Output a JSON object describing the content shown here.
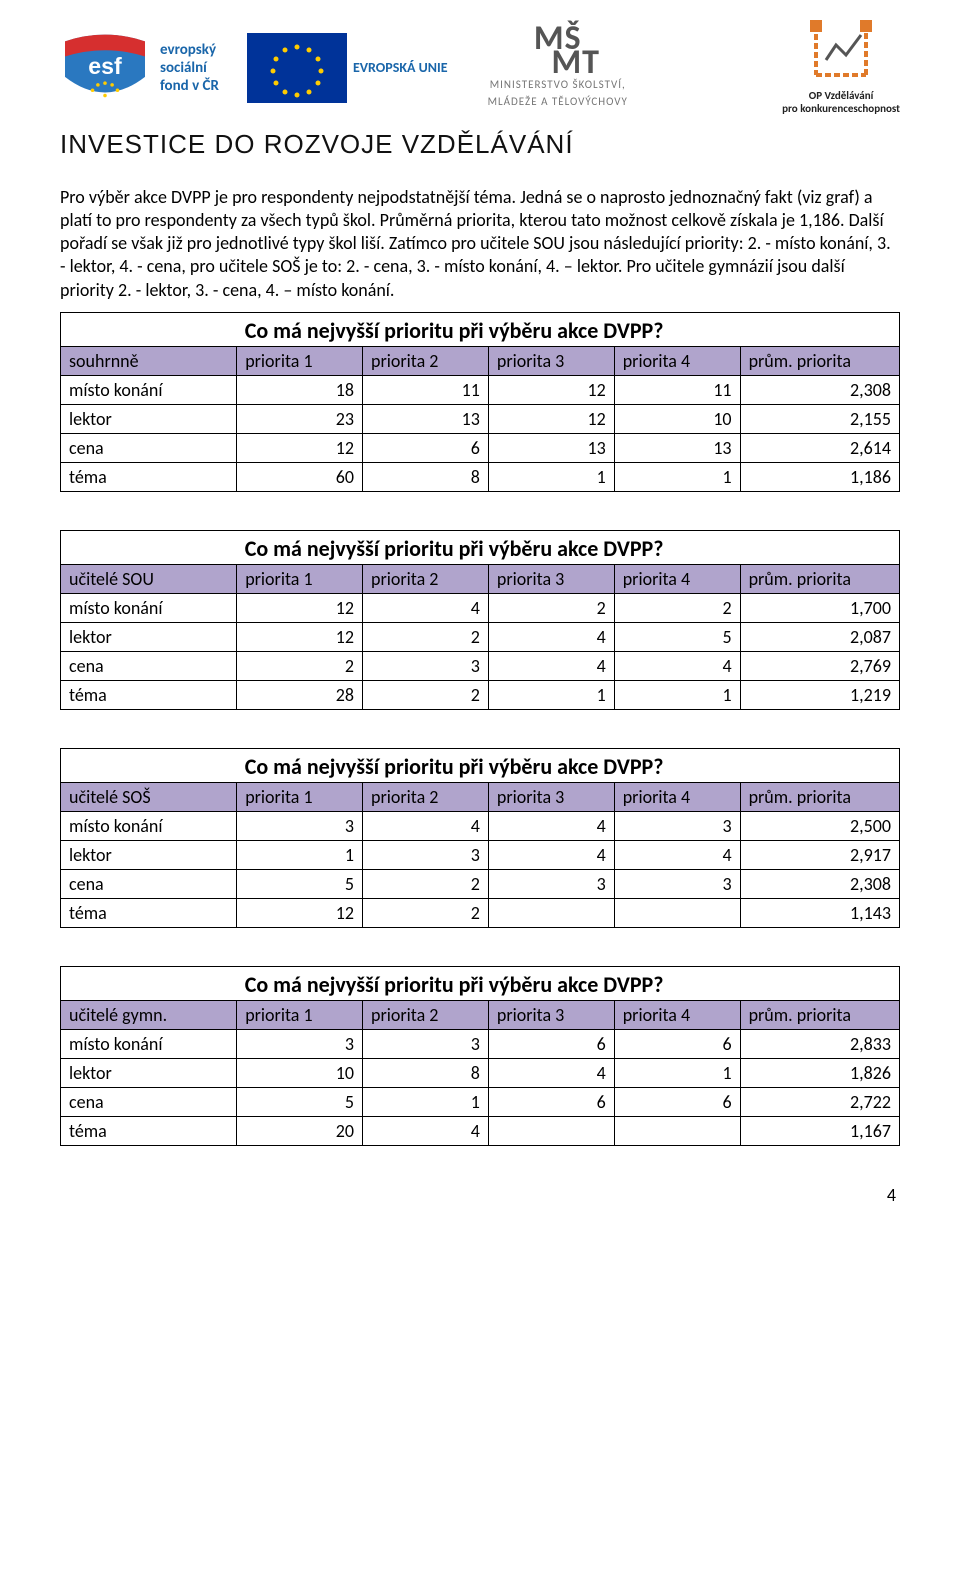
{
  "logos": {
    "esf_lines": [
      "evropský",
      "sociální",
      "fond v ČR"
    ],
    "eu_label": "EVROPSKÁ UNIE",
    "msmt_top": "MŠ",
    "msmt_bottom": "MT",
    "msmt_caption1": "MINISTERSTVO ŠKOLSTVÍ,",
    "msmt_caption2": "MLÁDEŽE A TĚLOVÝCHOVY",
    "opvk_caption1": "OP Vzdělávání",
    "opvk_caption2": "pro konkurenceschopnost"
  },
  "invest_title": "INVESTICE DO ROZVOJE VZDĚLÁVÁNÍ",
  "paragraph": "Pro výběr akce DVPP je pro respondenty nejpodstatnější téma. Jedná se o naprosto jednoznačný fakt (viz graf) a platí to pro respondenty za všech typů škol. Průměrná priorita, kterou tato možnost celkově získala je 1,186. Další pořadí se však již pro jednotlivé typy škol liší. Zatímco pro učitele SOU jsou následující priority: 2. - místo konání, 3. - lektor, 4. - cena, pro učitele SOŠ je to: 2. - cena, 3. - místo konání, 4. – lektor. Pro učitele gymnázií jsou další priority 2. - lektor, 3. - cena, 4. – místo konání.",
  "tables": [
    {
      "title": "Co má nejvyšší prioritu při výběru akce DVPP?",
      "group_label": "souhrnně",
      "columns": [
        "priorita 1",
        "priorita 2",
        "priorita 3",
        "priorita 4",
        "prům. priorita"
      ],
      "rows": [
        {
          "label": "místo konání",
          "v": [
            "18",
            "11",
            "12",
            "11",
            "2,308"
          ]
        },
        {
          "label": "lektor",
          "v": [
            "23",
            "13",
            "12",
            "10",
            "2,155"
          ]
        },
        {
          "label": "cena",
          "v": [
            "12",
            "6",
            "13",
            "13",
            "2,614"
          ]
        },
        {
          "label": "téma",
          "v": [
            "60",
            "8",
            "1",
            "1",
            "1,186"
          ]
        }
      ]
    },
    {
      "title": "Co má nejvyšší prioritu při výběru akce DVPP?",
      "group_label": "učitelé SOU",
      "columns": [
        "priorita 1",
        "priorita 2",
        "priorita 3",
        "priorita 4",
        "prům. priorita"
      ],
      "rows": [
        {
          "label": "místo konání",
          "v": [
            "12",
            "4",
            "2",
            "2",
            "1,700"
          ]
        },
        {
          "label": "lektor",
          "v": [
            "12",
            "2",
            "4",
            "5",
            "2,087"
          ]
        },
        {
          "label": "cena",
          "v": [
            "2",
            "3",
            "4",
            "4",
            "2,769"
          ]
        },
        {
          "label": "téma",
          "v": [
            "28",
            "2",
            "1",
            "1",
            "1,219"
          ]
        }
      ]
    },
    {
      "title": "Co má nejvyšší prioritu při výběru akce DVPP?",
      "group_label": "učitelé SOŠ",
      "columns": [
        "priorita 1",
        "priorita 2",
        "priorita 3",
        "priorita 4",
        "prům. priorita"
      ],
      "rows": [
        {
          "label": "místo konání",
          "v": [
            "3",
            "4",
            "4",
            "3",
            "2,500"
          ]
        },
        {
          "label": "lektor",
          "v": [
            "1",
            "3",
            "4",
            "4",
            "2,917"
          ]
        },
        {
          "label": "cena",
          "v": [
            "5",
            "2",
            "3",
            "3",
            "2,308"
          ]
        },
        {
          "label": "téma",
          "v": [
            "12",
            "2",
            "",
            "",
            "1,143"
          ]
        }
      ]
    },
    {
      "title": "Co má nejvyšší prioritu při výběru akce DVPP?",
      "group_label": "učitelé gymn.",
      "columns": [
        "priorita 1",
        "priorita 2",
        "priorita 3",
        "priorita 4",
        "prům. priorita"
      ],
      "rows": [
        {
          "label": "místo konání",
          "v": [
            "3",
            "3",
            "6",
            "6",
            "2,833"
          ]
        },
        {
          "label": "lektor",
          "v": [
            "10",
            "8",
            "4",
            "1",
            "1,826"
          ]
        },
        {
          "label": "cena",
          "v": [
            "5",
            "1",
            "6",
            "6",
            "2,722"
          ]
        },
        {
          "label": "téma",
          "v": [
            "20",
            "4",
            "",
            "",
            "1,167"
          ]
        }
      ]
    }
  ],
  "colors": {
    "header_fill": "#b0a4cc",
    "border": "#000000",
    "esf_blue": "#2a78c0",
    "esf_red": "#d62f2f",
    "eu_blue": "#003399",
    "eu_gold": "#ffcc00",
    "opvk_orange": "#e07a2a"
  },
  "page_number": "4"
}
